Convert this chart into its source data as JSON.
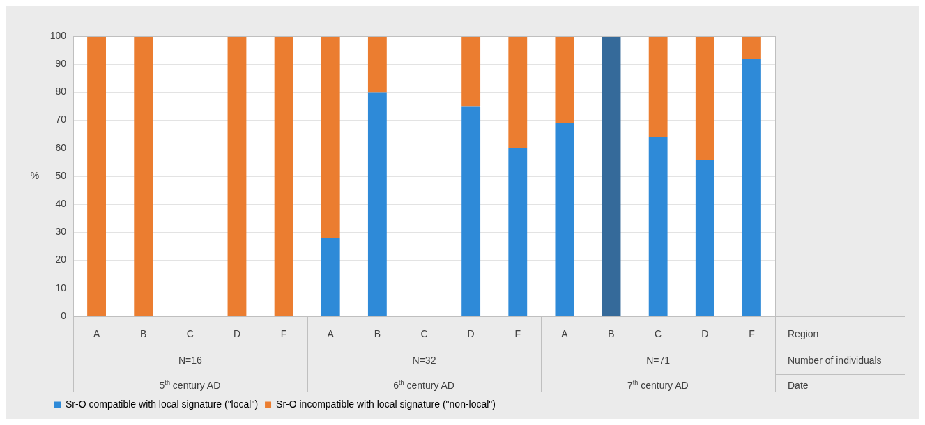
{
  "chart_data": {
    "type": "bar",
    "stacked": true,
    "ylabel": "%",
    "categories": [
      "A",
      "B",
      "C",
      "D",
      "F",
      "A",
      "B",
      "C",
      "D",
      "F",
      "A",
      "B",
      "C",
      "D",
      "F"
    ],
    "series": [
      {
        "name": "Sr-O compatible with local signature (\"local\")",
        "color": "#2e8ad8",
        "colors": [
          "#2e8ad8",
          "#2e8ad8",
          "#2e8ad8",
          "#2e8ad8",
          "#2e8ad8",
          "#2e8ad8",
          "#2e8ad8",
          "#2e8ad8",
          "#2e8ad8",
          "#2e8ad8",
          "#2e8ad8",
          "#356a9a",
          "#2e8ad8",
          "#2e8ad8",
          "#2e8ad8"
        ],
        "values": [
          0,
          0,
          0,
          0,
          0,
          28,
          80,
          0,
          75,
          60,
          69,
          100,
          64,
          56,
          92
        ]
      },
      {
        "name": "Sr-O incompatible with local signature (\"non-local\")",
        "color": "#eb7d30",
        "values": [
          100,
          100,
          0,
          100,
          100,
          72,
          20,
          0,
          25,
          40,
          31,
          0,
          36,
          44,
          8
        ]
      }
    ],
    "ylim": [
      0,
      100
    ],
    "yticks": [
      0,
      10,
      20,
      30,
      40,
      50,
      60,
      70,
      80,
      90,
      100
    ],
    "grid": "y",
    "legend": "bottom left",
    "annotations": [
      "N=16",
      "N=32",
      "N=71",
      "5$^{th}$ century AD",
      "6$^{th}$ century AD",
      "7$^{th}$ century AD",
      "Region",
      "Number of individuals",
      "Date"
    ]
  }
}
